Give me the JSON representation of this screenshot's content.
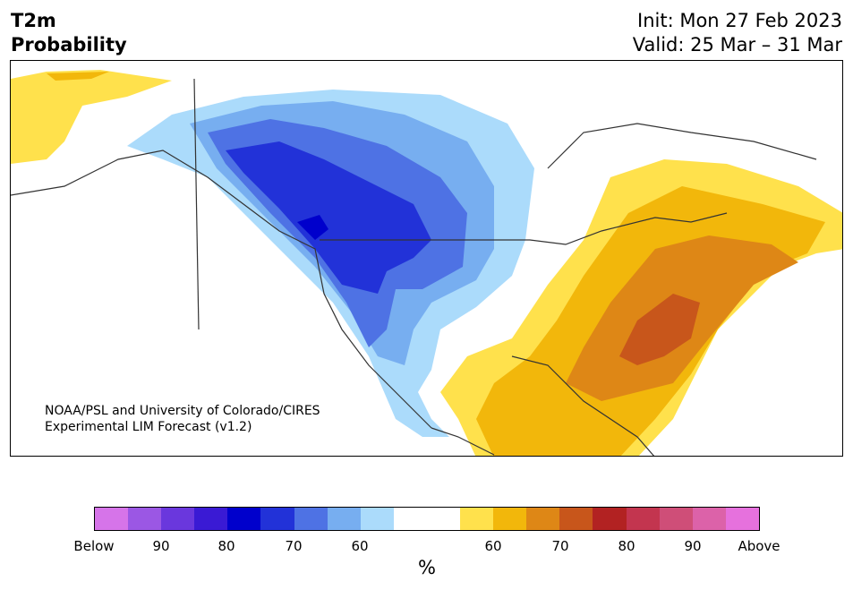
{
  "header": {
    "title_line1": "T2m",
    "title_line2": "Probability",
    "init": "Init: Mon 27 Feb 2023",
    "valid": "Valid: 25 Mar – 31 Mar"
  },
  "map": {
    "region": "North America",
    "credit_line1": "NOAA/PSL and University of Colorado/CIRES",
    "credit_line2": "Experimental LIM Forecast (v1.2)"
  },
  "colorbar": {
    "unit": "%",
    "colors": [
      "#d674e9",
      "#9b57e4",
      "#6a37dd",
      "#3a1ad4",
      "#0000cc",
      "#2232d8",
      "#4e72e4",
      "#77aef0",
      "#abdbfb",
      "#ffffff",
      "#ffffff",
      "#ffe14c",
      "#f2b70b",
      "#de8716",
      "#c8561b",
      "#b22222",
      "#c3354f",
      "#cf4e78",
      "#dc62a9",
      "#e671dd"
    ],
    "tick_labels": [
      "Below",
      "90",
      "80",
      "70",
      "60",
      "60",
      "70",
      "80",
      "90",
      "Above"
    ]
  }
}
